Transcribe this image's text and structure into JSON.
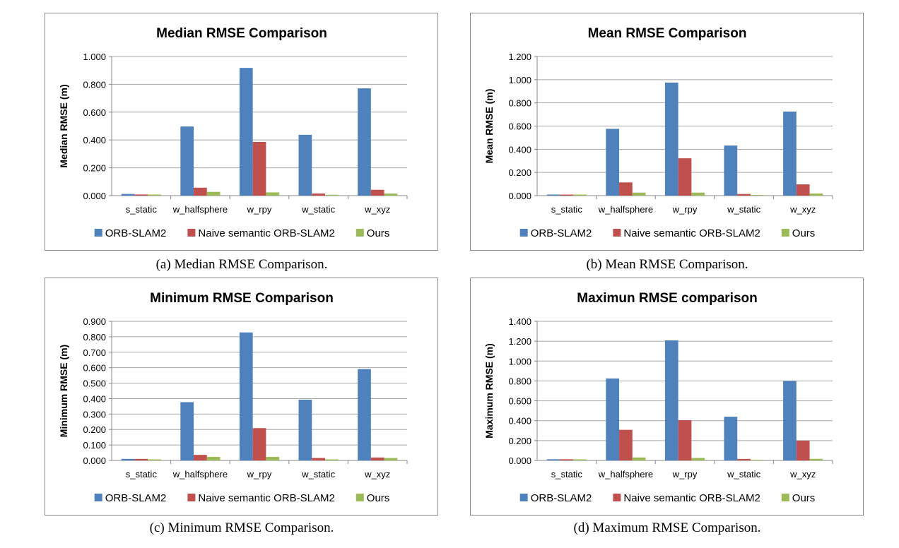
{
  "colors": {
    "ORB-SLAM2": "#4f81bd",
    "Naive semantic ORB-SLAM2": "#c0504d",
    "Ours": "#9bbb59",
    "grid": "#a6a6a6",
    "axis": "#868686"
  },
  "chart_data": [
    {
      "type": "bar",
      "title": "Median RMSE Comparison",
      "caption": "(a) Median RMSE Comparison.",
      "ylabel": "Median RMSE (m)",
      "xlabel": "",
      "ylim": [
        0,
        1.0
      ],
      "yticks": [
        "0.000",
        "0.200",
        "0.400",
        "0.600",
        "0.800",
        "1.000"
      ],
      "categories": [
        "s_static",
        "w_halfsphere",
        "w_rpy",
        "w_static",
        "w_xyz"
      ],
      "legend": "bottom",
      "grid": true,
      "series": [
        {
          "name": "ORB-SLAM2",
          "values": [
            0.012,
            0.497,
            0.918,
            0.437,
            0.771
          ]
        },
        {
          "name": "Naive semantic ORB-SLAM2",
          "values": [
            0.008,
            0.057,
            0.386,
            0.015,
            0.042
          ]
        },
        {
          "name": "Ours",
          "values": [
            0.008,
            0.027,
            0.023,
            0.006,
            0.015
          ]
        }
      ]
    },
    {
      "type": "bar",
      "title": "Mean RMSE Comparison",
      "caption": "(b) Mean RMSE Comparison.",
      "ylabel": "Mean RMSE (m)",
      "xlabel": "",
      "ylim": [
        0,
        1.2
      ],
      "yticks": [
        "0.000",
        "0.200",
        "0.400",
        "0.600",
        "0.800",
        "1.000",
        "1.200"
      ],
      "categories": [
        "s_static",
        "w_halfsphere",
        "w_rpy",
        "w_static",
        "w_xyz"
      ],
      "legend": "bottom",
      "grid": true,
      "series": [
        {
          "name": "ORB-SLAM2",
          "values": [
            0.009,
            0.576,
            0.975,
            0.432,
            0.725
          ]
        },
        {
          "name": "Naive semantic ORB-SLAM2",
          "values": [
            0.009,
            0.114,
            0.322,
            0.014,
            0.097
          ]
        },
        {
          "name": "Ours",
          "values": [
            0.009,
            0.026,
            0.026,
            0.006,
            0.018
          ]
        }
      ]
    },
    {
      "type": "bar",
      "title": "Minimum RMSE Comparison",
      "caption": "(c) Minimum RMSE Comparison.",
      "ylabel": "Minimum RMSE (m)",
      "xlabel": "",
      "ylim": [
        0,
        0.9
      ],
      "yticks": [
        "0.000",
        "0.100",
        "0.200",
        "0.300",
        "0.400",
        "0.500",
        "0.600",
        "0.700",
        "0.800",
        "0.900"
      ],
      "categories": [
        "s_static",
        "w_halfsphere",
        "w_rpy",
        "w_static",
        "w_xyz"
      ],
      "legend": "bottom",
      "grid": true,
      "series": [
        {
          "name": "ORB-SLAM2",
          "values": [
            0.01,
            0.377,
            0.828,
            0.393,
            0.591
          ]
        },
        {
          "name": "Naive semantic ORB-SLAM2",
          "values": [
            0.01,
            0.036,
            0.209,
            0.016,
            0.019
          ]
        },
        {
          "name": "Ours",
          "values": [
            0.007,
            0.023,
            0.023,
            0.007,
            0.016
          ]
        }
      ]
    },
    {
      "type": "bar",
      "title": "Maximun RMSE comparison",
      "caption": "(d) Maximum RMSE Comparison.",
      "ylabel": "Maximum RMSE (m)",
      "xlabel": "",
      "ylim": [
        0,
        1.4
      ],
      "yticks": [
        "0.000",
        "0.200",
        "0.400",
        "0.600",
        "0.800",
        "1.000",
        "1.200",
        "1.400"
      ],
      "categories": [
        "s_static",
        "w_halfsphere",
        "w_rpy",
        "w_static",
        "w_xyz"
      ],
      "legend": "bottom",
      "grid": true,
      "series": [
        {
          "name": "ORB-SLAM2",
          "values": [
            0.012,
            0.825,
            1.208,
            0.44,
            0.8
          ]
        },
        {
          "name": "Naive semantic ORB-SLAM2",
          "values": [
            0.012,
            0.308,
            0.405,
            0.015,
            0.199
          ]
        },
        {
          "name": "Ours",
          "values": [
            0.011,
            0.03,
            0.025,
            0.006,
            0.016
          ]
        }
      ]
    }
  ]
}
